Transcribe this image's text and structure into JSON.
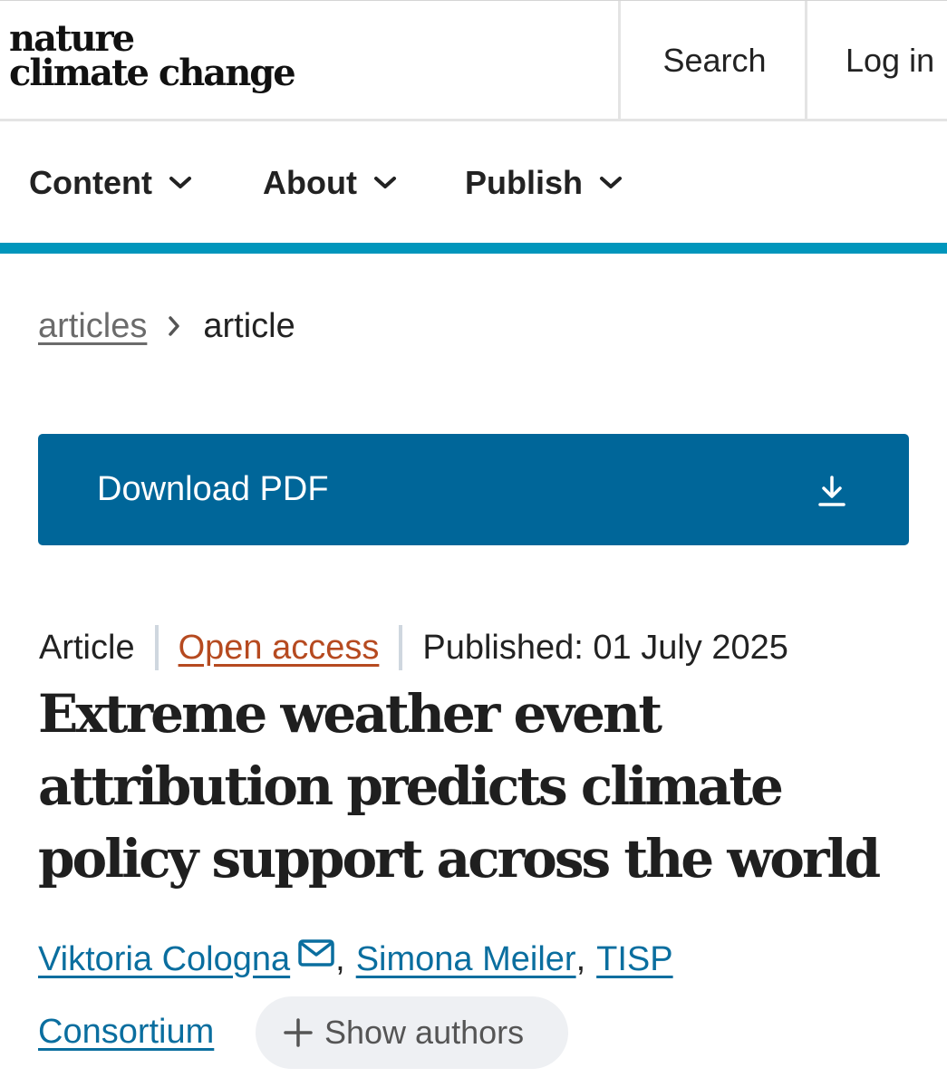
{
  "header": {
    "logo_line1": "nature",
    "logo_line2": "climate change",
    "search_label": "Search",
    "login_label": "Log in"
  },
  "nav": {
    "items": [
      {
        "label": "Content"
      },
      {
        "label": "About"
      },
      {
        "label": "Publish"
      }
    ]
  },
  "breadcrumb": {
    "parent": "articles",
    "current": "article"
  },
  "download": {
    "label": "Download PDF",
    "icon": "download-icon"
  },
  "meta": {
    "type": "Article",
    "access": "Open access",
    "published": "Published: 01 July 2025"
  },
  "article": {
    "title": "Extreme weather event attribution predicts climate policy support across the world"
  },
  "authors": {
    "list": [
      "Viktoria Cologna",
      "Simona Meiler",
      "TISP",
      "Consortium"
    ],
    "comma": ",",
    "show_authors_label": "Show authors"
  },
  "colors": {
    "accent_bar": "#0096bc",
    "download_bg": "#006699",
    "open_access": "#b64a20",
    "author_link": "#0a6e9f"
  }
}
